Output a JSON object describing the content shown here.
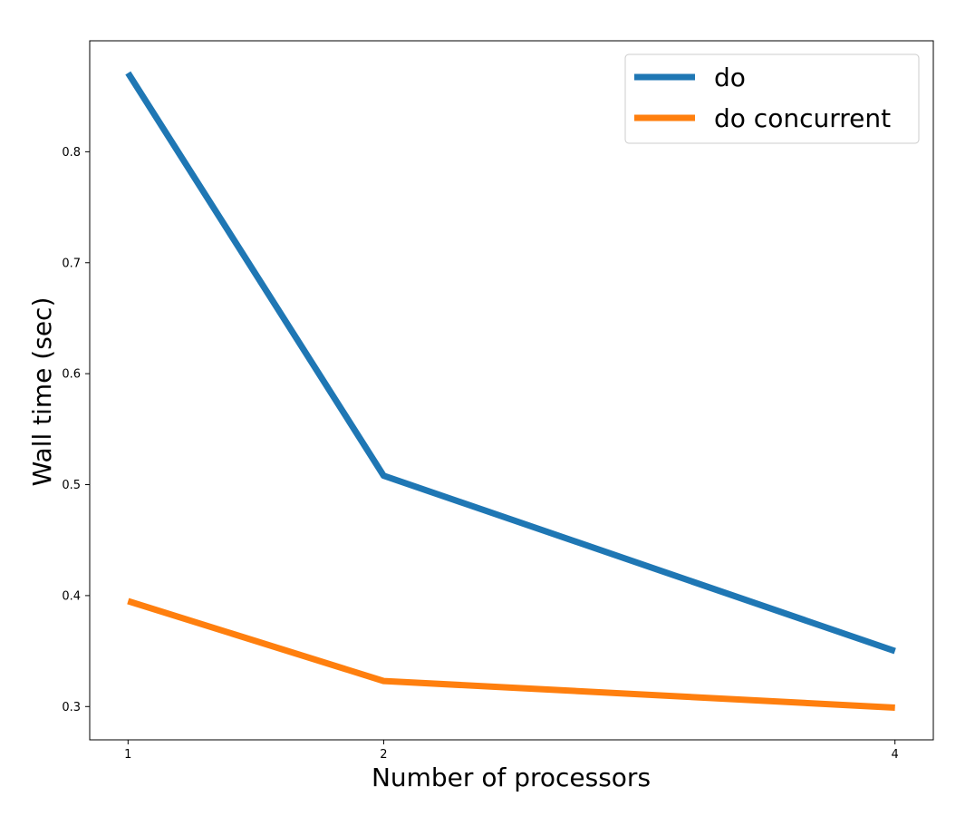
{
  "chart_data": {
    "type": "line",
    "xlabel": "Number of processors",
    "ylabel": "Wall time (sec)",
    "x": [
      1,
      2,
      4
    ],
    "x_ticks": [
      "1",
      "2",
      "4"
    ],
    "y_ticks": [
      "0.3",
      "0.4",
      "0.5",
      "0.6",
      "0.7",
      "0.8"
    ],
    "xlim": [
      0.85,
      4.15
    ],
    "ylim": [
      0.27,
      0.9
    ],
    "grid": false,
    "legend_position": "top-right",
    "series": [
      {
        "name": "do",
        "values": [
          0.871,
          0.508,
          0.35
        ],
        "color": "#1f77b4"
      },
      {
        "name": "do concurrent",
        "values": [
          0.395,
          0.323,
          0.299
        ],
        "color": "#ff7f0e"
      }
    ]
  }
}
